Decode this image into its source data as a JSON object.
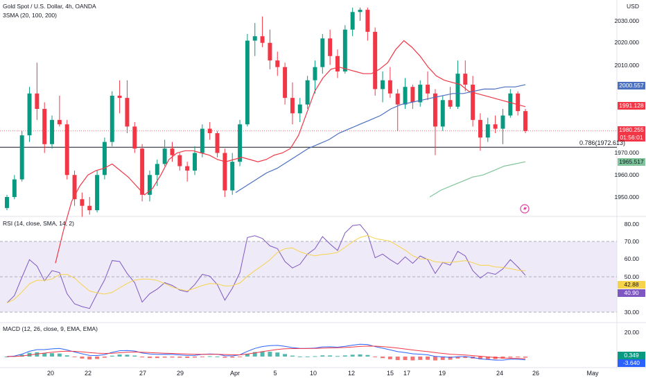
{
  "header": {
    "symbol_title": "Gold Spot / U.S. Dollar, 4h, OANDA",
    "sma_legend": "3SMA (20, 100, 200)",
    "currency": "USD"
  },
  "price_axis": {
    "ticks": [
      "2030.000",
      "2020.000",
      "2010.000",
      "1970.000",
      "1960.000",
      "1950.000"
    ],
    "ylim": [
      1941,
      2036
    ]
  },
  "price_badges": {
    "sma100": "2000.557",
    "sma20": "1991.128",
    "last_price": "1980.255",
    "countdown": "01:56:01",
    "sma200": "1965.517"
  },
  "fib_level": {
    "label": "0.786(1972.613)",
    "value": 1972.613
  },
  "rsi": {
    "legend": "RSI (14, close, SMA, 14, 2)",
    "ticks": [
      "80.00",
      "70.00",
      "60.00",
      "50.00",
      "30.00"
    ],
    "badge_sma": "42.88",
    "badge_rsi": "40.90",
    "bands": [
      30,
      50,
      70
    ],
    "ylim": [
      27,
      82
    ]
  },
  "macd": {
    "legend": "MACD (12, 26, close, 9, EMA, EMA)",
    "ticks": [
      "20.00"
    ],
    "badge_macd": "0.349",
    "badge_signal": "-3.640"
  },
  "time_axis": {
    "labels": [
      "20",
      "22",
      "27",
      "29",
      "Apr",
      "5",
      "10",
      "12",
      "15",
      "17",
      "19",
      "24",
      "26",
      "May"
    ]
  },
  "colors": {
    "up": "#089981",
    "down": "#f23645",
    "sma20": "#f23645",
    "sma100": "#4a6fbf",
    "sma200": "#7fc49a",
    "rsi_line": "#7e57c2",
    "rsi_sma": "#f7d34b",
    "macd_line": "#2962ff",
    "signal_line": "#f23645"
  },
  "chart_data": {
    "type": "candlestick",
    "title": "Gold Spot / U.S. Dollar, 4h, OANDA",
    "candles": [
      {
        "o": 1945,
        "h": 1951,
        "l": 1944,
        "c": 1950
      },
      {
        "o": 1950,
        "h": 1960,
        "l": 1949,
        "c": 1958
      },
      {
        "o": 1958,
        "h": 1980,
        "l": 1957,
        "c": 1978
      },
      {
        "o": 1978,
        "h": 2000,
        "l": 1975,
        "c": 1997
      },
      {
        "o": 1997,
        "h": 2011,
        "l": 1985,
        "c": 1990
      },
      {
        "o": 1990,
        "h": 1993,
        "l": 1970,
        "c": 1974
      },
      {
        "o": 1974,
        "h": 1987,
        "l": 1972,
        "c": 1985
      },
      {
        "o": 1985,
        "h": 1996,
        "l": 1982,
        "c": 1983
      },
      {
        "o": 1983,
        "h": 1985,
        "l": 1958,
        "c": 1960
      },
      {
        "o": 1960,
        "h": 1962,
        "l": 1946,
        "c": 1949
      },
      {
        "o": 1949,
        "h": 1952,
        "l": 1941,
        "c": 1946
      },
      {
        "o": 1946,
        "h": 1950,
        "l": 1942,
        "c": 1944
      },
      {
        "o": 1944,
        "h": 1962,
        "l": 1943,
        "c": 1960
      },
      {
        "o": 1960,
        "h": 1977,
        "l": 1958,
        "c": 1975
      },
      {
        "o": 1975,
        "h": 1998,
        "l": 1973,
        "c": 1996
      },
      {
        "o": 1996,
        "h": 2003,
        "l": 1988,
        "c": 1995
      },
      {
        "o": 1995,
        "h": 2003,
        "l": 1979,
        "c": 1982
      },
      {
        "o": 1982,
        "h": 1984,
        "l": 1970,
        "c": 1972
      },
      {
        "o": 1972,
        "h": 1974,
        "l": 1948,
        "c": 1951
      },
      {
        "o": 1951,
        "h": 1962,
        "l": 1948,
        "c": 1960
      },
      {
        "o": 1960,
        "h": 1967,
        "l": 1955,
        "c": 1965
      },
      {
        "o": 1965,
        "h": 1976,
        "l": 1964,
        "c": 1972
      },
      {
        "o": 1972,
        "h": 1975,
        "l": 1966,
        "c": 1969
      },
      {
        "o": 1969,
        "h": 1970,
        "l": 1962,
        "c": 1964
      },
      {
        "o": 1964,
        "h": 1966,
        "l": 1957,
        "c": 1962
      },
      {
        "o": 1962,
        "h": 1973,
        "l": 1960,
        "c": 1970
      },
      {
        "o": 1970,
        "h": 1983,
        "l": 1968,
        "c": 1981
      },
      {
        "o": 1981,
        "h": 1984,
        "l": 1976,
        "c": 1979
      },
      {
        "o": 1979,
        "h": 1980,
        "l": 1968,
        "c": 1970
      },
      {
        "o": 1970,
        "h": 1972,
        "l": 1950,
        "c": 1953
      },
      {
        "o": 1953,
        "h": 1970,
        "l": 1951,
        "c": 1966
      },
      {
        "o": 1966,
        "h": 1985,
        "l": 1964,
        "c": 1983
      },
      {
        "o": 1983,
        "h": 2024,
        "l": 1982,
        "c": 2021
      },
      {
        "o": 2021,
        "h": 2029,
        "l": 2014,
        "c": 2023
      },
      {
        "o": 2023,
        "h": 2032,
        "l": 2018,
        "c": 2020
      },
      {
        "o": 2020,
        "h": 2026,
        "l": 2008,
        "c": 2012
      },
      {
        "o": 2012,
        "h": 2016,
        "l": 2005,
        "c": 2009
      },
      {
        "o": 2009,
        "h": 2011,
        "l": 1992,
        "c": 1995
      },
      {
        "o": 1995,
        "h": 2002,
        "l": 1983,
        "c": 1988
      },
      {
        "o": 1988,
        "h": 1995,
        "l": 1984,
        "c": 1992
      },
      {
        "o": 1992,
        "h": 2005,
        "l": 1990,
        "c": 2003
      },
      {
        "o": 2003,
        "h": 2012,
        "l": 1997,
        "c": 2009
      },
      {
        "o": 2009,
        "h": 2024,
        "l": 2006,
        "c": 2022
      },
      {
        "o": 2022,
        "h": 2026,
        "l": 2010,
        "c": 2014
      },
      {
        "o": 2014,
        "h": 2017,
        "l": 2004,
        "c": 2007
      },
      {
        "o": 2007,
        "h": 2028,
        "l": 2006,
        "c": 2026
      },
      {
        "o": 2026,
        "h": 2036,
        "l": 2023,
        "c": 2034
      },
      {
        "o": 2034,
        "h": 2036,
        "l": 2030,
        "c": 2035
      },
      {
        "o": 2035,
        "h": 2036,
        "l": 2021,
        "c": 2025
      },
      {
        "o": 2025,
        "h": 2027,
        "l": 1996,
        "c": 1999
      },
      {
        "o": 1999,
        "h": 2007,
        "l": 1993,
        "c": 2003
      },
      {
        "o": 2003,
        "h": 2009,
        "l": 1995,
        "c": 1997
      },
      {
        "o": 1997,
        "h": 1999,
        "l": 1980,
        "c": 1992
      },
      {
        "o": 1992,
        "h": 2004,
        "l": 1990,
        "c": 2000
      },
      {
        "o": 2000,
        "h": 2001,
        "l": 1990,
        "c": 1993
      },
      {
        "o": 1993,
        "h": 2003,
        "l": 1991,
        "c": 2001
      },
      {
        "o": 2001,
        "h": 2007,
        "l": 1994,
        "c": 1997
      },
      {
        "o": 1997,
        "h": 1999,
        "l": 1969,
        "c": 1982
      },
      {
        "o": 1982,
        "h": 1996,
        "l": 1980,
        "c": 1994
      },
      {
        "o": 1994,
        "h": 2000,
        "l": 1990,
        "c": 1991
      },
      {
        "o": 1991,
        "h": 2012,
        "l": 1990,
        "c": 2006
      },
      {
        "o": 2006,
        "h": 2012,
        "l": 1998,
        "c": 2001
      },
      {
        "o": 2001,
        "h": 2005,
        "l": 1982,
        "c": 1985
      },
      {
        "o": 1985,
        "h": 1988,
        "l": 1971,
        "c": 1977
      },
      {
        "o": 1977,
        "h": 1986,
        "l": 1975,
        "c": 1983
      },
      {
        "o": 1983,
        "h": 1987,
        "l": 1979,
        "c": 1981
      },
      {
        "o": 1981,
        "h": 1990,
        "l": 1974,
        "c": 1987
      },
      {
        "o": 1987,
        "h": 1999,
        "l": 1986,
        "c": 1997
      },
      {
        "o": 1997,
        "h": 1998,
        "l": 1987,
        "c": 1989
      },
      {
        "o": 1989,
        "h": 1990,
        "l": 1979,
        "c": 1980
      }
    ],
    "sma20": [
      1920,
      1935,
      1948,
      1955,
      1960,
      1962,
      1963,
      1965,
      1962,
      1959,
      1955,
      1951,
      1954,
      1960,
      1967,
      1970,
      1971,
      1971,
      1970,
      1969,
      1967,
      1966,
      1967,
      1968,
      1967,
      1966,
      1967,
      1969,
      1970,
      1972,
      1978,
      1988,
      1998,
      2004,
      2008,
      2009,
      2008,
      2007,
      2006,
      2006,
      2008,
      2011,
      2017,
      2021,
      2018,
      2014,
      2009,
      2005,
      2003,
      2002,
      2001,
      1998,
      1997,
      1996,
      1995,
      1994,
      1993,
      1992,
      1991
    ],
    "sma100": [
      1952,
      1955,
      1958,
      1961,
      1963,
      1966,
      1969,
      1972,
      1974,
      1976,
      1979,
      1981,
      1983,
      1985,
      1987,
      1990,
      1992,
      1993,
      1994,
      1995,
      1996,
      1997,
      1997,
      1998,
      1999,
      1999,
      2000,
      2000,
      2001
    ],
    "sma200": [
      1950,
      1953,
      1955,
      1957,
      1959,
      1960,
      1962,
      1964,
      1965,
      1966
    ]
  }
}
